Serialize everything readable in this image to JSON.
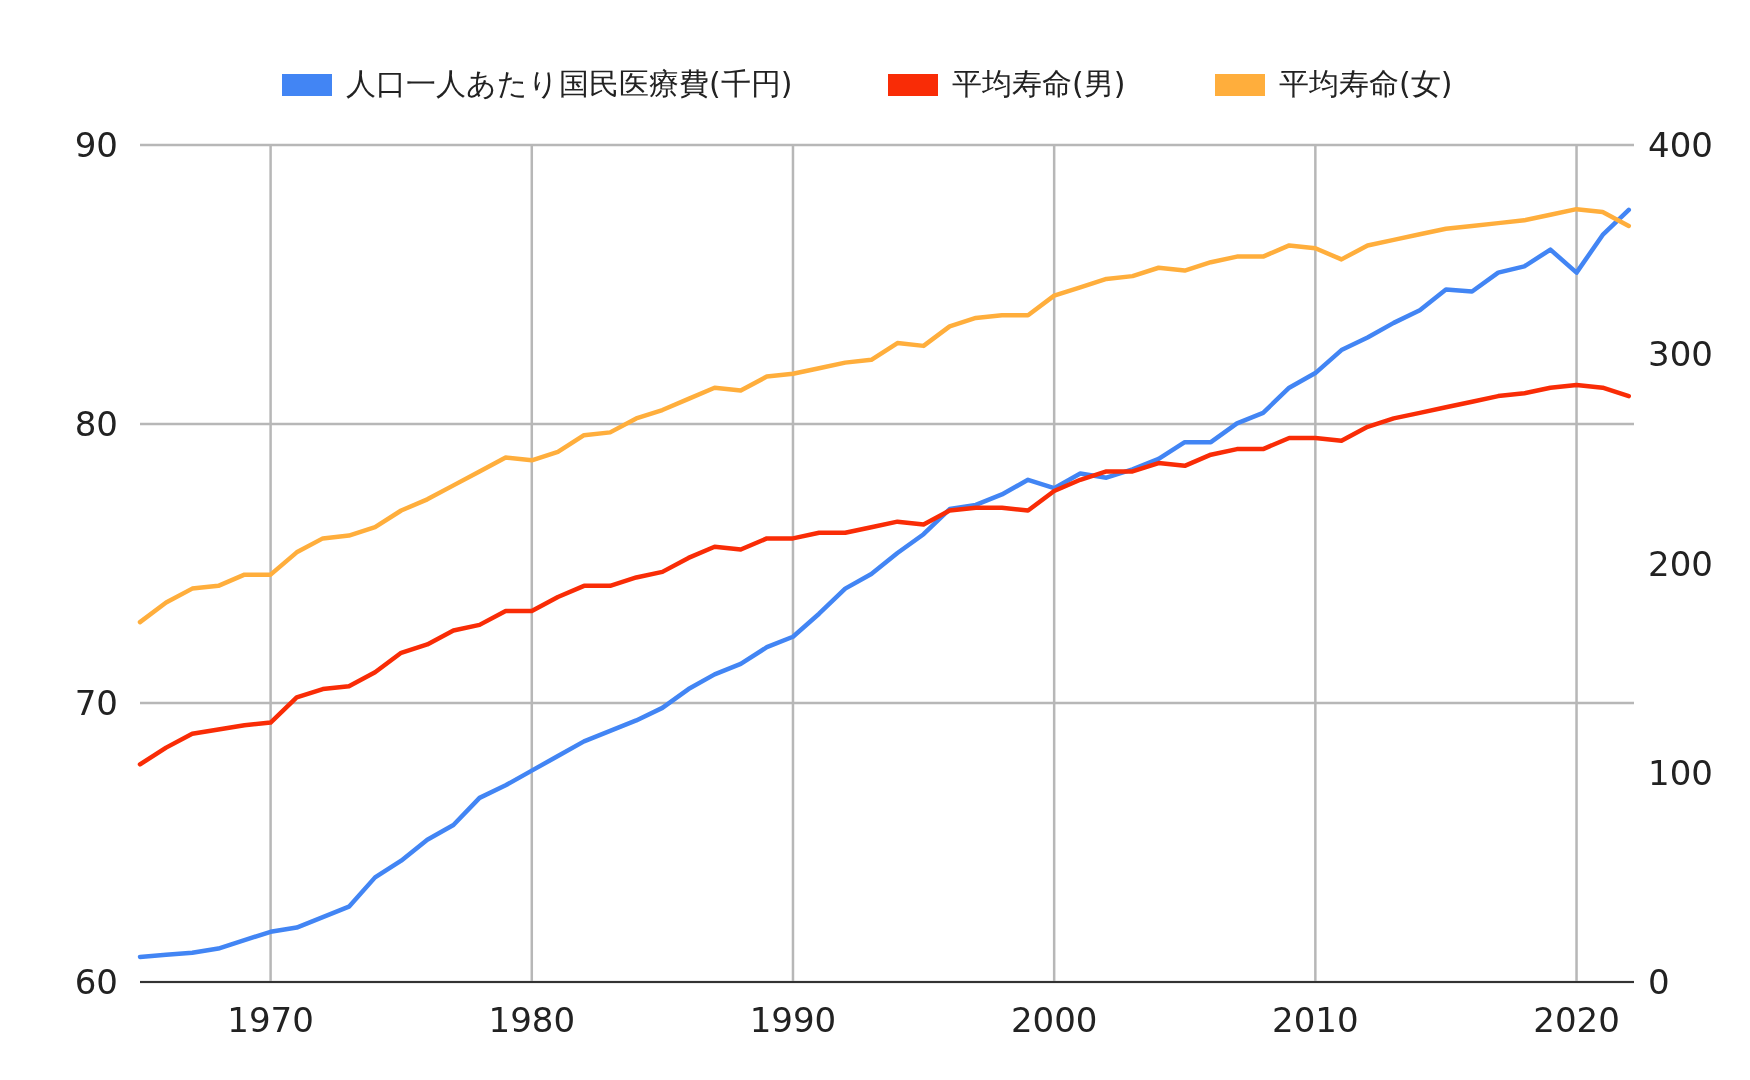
{
  "chart_data": {
    "type": "line",
    "x": [
      1965,
      1966,
      1967,
      1968,
      1969,
      1970,
      1971,
      1972,
      1973,
      1974,
      1975,
      1976,
      1977,
      1978,
      1979,
      1980,
      1981,
      1982,
      1983,
      1984,
      1985,
      1986,
      1987,
      1988,
      1989,
      1990,
      1991,
      1992,
      1993,
      1994,
      1995,
      1996,
      1997,
      1998,
      1999,
      2000,
      2001,
      2002,
      2003,
      2004,
      2005,
      2006,
      2007,
      2008,
      2009,
      2010,
      2011,
      2012,
      2013,
      2014,
      2015,
      2016,
      2017,
      2018,
      2019,
      2020,
      2021,
      2022
    ],
    "series": [
      {
        "name": "人口一人あたり国民医療費(千円)",
        "color": "#4285f4",
        "axis": "y2",
        "values": [
          12,
          13,
          14,
          16,
          20,
          24,
          26,
          31,
          36,
          50,
          58,
          68,
          75,
          88,
          94,
          101,
          108,
          115,
          120,
          125,
          131,
          140,
          147,
          152,
          160,
          165,
          176,
          188,
          195,
          205,
          214,
          226,
          228,
          233,
          240,
          236,
          243,
          241,
          245,
          250,
          258,
          258,
          267,
          272,
          284,
          291,
          302,
          308,
          315,
          321,
          331,
          330,
          339,
          342,
          350,
          339,
          357,
          369
        ]
      },
      {
        "name": "平均寿命(男)",
        "color": "#f92c06",
        "values": [
          67.8,
          68.4,
          68.9,
          69.05,
          69.2,
          69.3,
          70.2,
          70.5,
          70.6,
          71.1,
          71.8,
          72.1,
          72.6,
          72.8,
          73.3,
          73.3,
          73.8,
          74.2,
          74.2,
          74.5,
          74.7,
          75.2,
          75.6,
          75.5,
          75.9,
          75.9,
          76.1,
          76.1,
          76.3,
          76.5,
          76.4,
          76.9,
          77.0,
          77.0,
          76.9,
          77.6,
          78.0,
          78.3,
          78.3,
          78.6,
          78.5,
          78.9,
          79.1,
          79.1,
          79.5,
          79.5,
          79.4,
          79.9,
          80.2,
          80.4,
          80.6,
          80.8,
          81.0,
          81.1,
          81.3,
          81.4,
          81.3,
          81.0
        ]
      },
      {
        "name": "平均寿命(女)",
        "color": "#ffae3c",
        "values": [
          72.9,
          73.6,
          74.1,
          74.2,
          74.6,
          74.6,
          75.4,
          75.9,
          76.0,
          76.3,
          76.9,
          77.3,
          77.8,
          78.3,
          78.8,
          78.7,
          79.0,
          79.6,
          79.7,
          80.2,
          80.5,
          80.9,
          81.3,
          81.2,
          81.7,
          81.8,
          82.0,
          82.2,
          82.3,
          82.9,
          82.8,
          83.5,
          83.8,
          83.9,
          83.9,
          84.6,
          84.9,
          85.2,
          85.3,
          85.6,
          85.5,
          85.8,
          86.0,
          86.0,
          86.4,
          86.3,
          85.9,
          86.4,
          86.6,
          86.8,
          87.0,
          87.1,
          87.2,
          87.3,
          87.5,
          87.7,
          87.6,
          87.1
        ]
      }
    ],
    "xlim": [
      1965,
      2022.2
    ],
    "xticks": [
      1970,
      1980,
      1990,
      2000,
      2010,
      2020
    ],
    "ylim": [
      60,
      90
    ],
    "yticks": [
      60,
      70,
      80,
      90
    ],
    "y2lim": [
      0,
      400
    ],
    "y2ticks": [
      0,
      100,
      200,
      300,
      400
    ],
    "grid": true,
    "legend": "top"
  }
}
